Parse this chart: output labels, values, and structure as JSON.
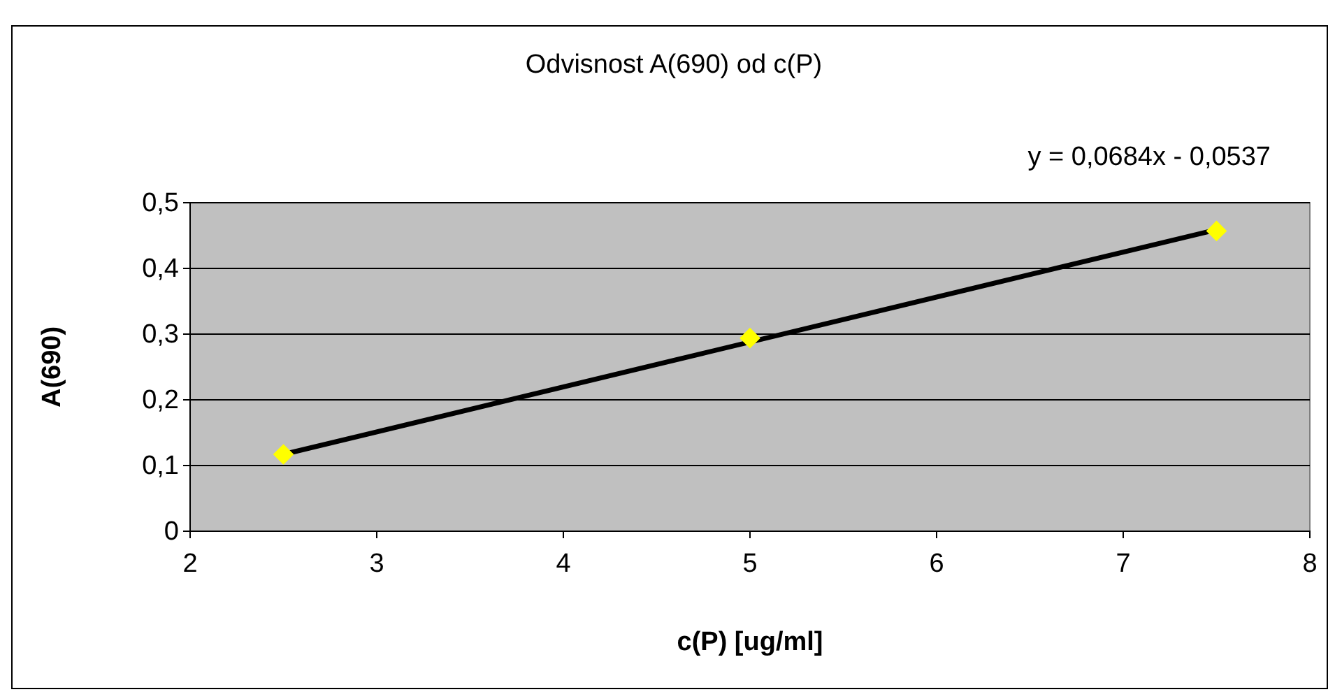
{
  "chart_data": {
    "type": "scatter",
    "title": "Odvisnost A(690) od c(P)",
    "xlabel": "c(P) [ug/ml]",
    "ylabel": "A(690)",
    "annotations": [
      "y = 0,0684x - 0,0537"
    ],
    "series": [
      {
        "color": "#ffff00",
        "marker": "diamond",
        "x": [
          2.5,
          5,
          7.5
        ],
        "values": [
          0.117,
          0.294,
          0.457
        ]
      },
      {
        "type": "line",
        "color": "#000000",
        "marker": "none",
        "line_style": "solid",
        "x": [
          2.5,
          7.5
        ],
        "values": [
          0.117,
          0.459
        ]
      }
    ],
    "xlim": [
      2,
      8
    ],
    "xticks": [
      2,
      3,
      4,
      5,
      6,
      7,
      8
    ],
    "ylim": [
      0,
      0.5
    ],
    "yticks": [
      {
        "value": 0,
        "label": "0"
      },
      {
        "value": 0.1,
        "label": "0,1"
      },
      {
        "value": 0.2,
        "label": "0,2"
      },
      {
        "value": 0.3,
        "label": "0,3"
      },
      {
        "value": 0.4,
        "label": "0,4"
      },
      {
        "value": 0.5,
        "label": "0,5"
      }
    ],
    "grid": "y"
  }
}
